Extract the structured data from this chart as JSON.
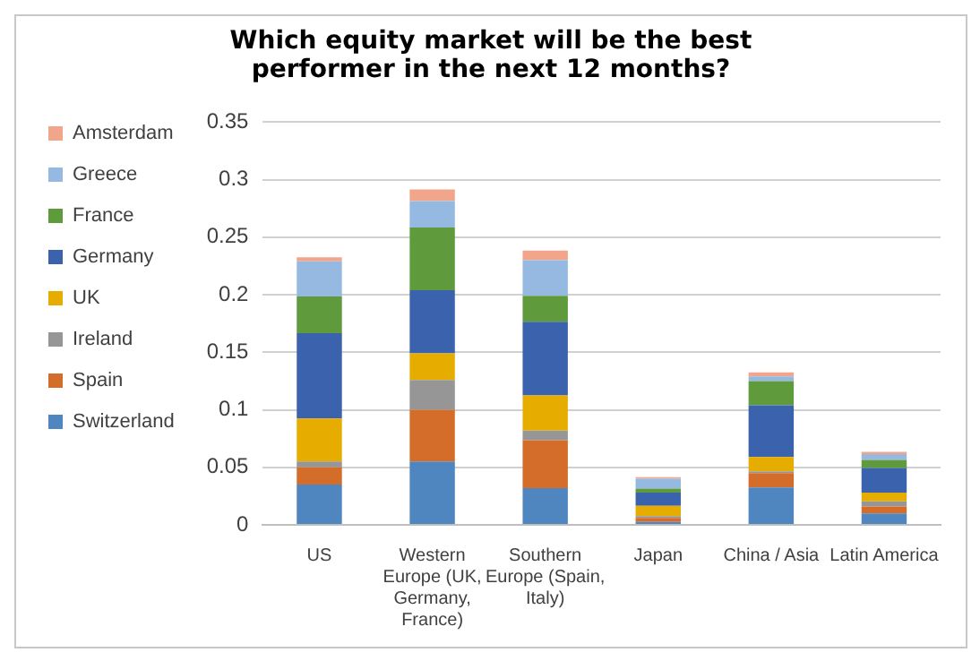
{
  "chart_data": {
    "type": "bar",
    "title": "Which equity market will be the best performer in the next 12 months?",
    "categories": [
      "US",
      "Western Europe (UK, Germany, France)",
      "Southern Europe (Spain, Italy)",
      "Japan",
      "China / Asia",
      "Latin America"
    ],
    "stacked": true,
    "ylim": [
      0,
      0.35
    ],
    "yticks": [
      0,
      0.05,
      0.1,
      0.15,
      0.2,
      0.25,
      0.3,
      0.35
    ],
    "grid": "y",
    "legend": "top left",
    "series": [
      {
        "name": "Switzerland",
        "color": "#4f86c0",
        "values": [
          0.035,
          0.055,
          0.032,
          0.0025,
          0.0325,
          0.01
        ]
      },
      {
        "name": "Spain",
        "color": "#d46c2a",
        "values": [
          0.015,
          0.045,
          0.0415,
          0.0035,
          0.0125,
          0.006
        ]
      },
      {
        "name": "Ireland",
        "color": "#969696",
        "values": [
          0.005,
          0.026,
          0.0085,
          0.0015,
          0.0015,
          0.0045
        ]
      },
      {
        "name": "UK",
        "color": "#e6ad00",
        "values": [
          0.0375,
          0.023,
          0.0305,
          0.009,
          0.0125,
          0.0075
        ]
      },
      {
        "name": "Germany",
        "color": "#3b63ad",
        "values": [
          0.074,
          0.055,
          0.064,
          0.0115,
          0.045,
          0.0215
        ]
      },
      {
        "name": "France",
        "color": "#5f9b3d",
        "values": [
          0.032,
          0.0545,
          0.0225,
          0.0035,
          0.021,
          0.007
        ]
      },
      {
        "name": "Greece",
        "color": "#96b9e1",
        "values": [
          0.0305,
          0.023,
          0.031,
          0.0085,
          0.004,
          0.005
        ]
      },
      {
        "name": "Amsterdam",
        "color": "#f1a68b",
        "values": [
          0.0035,
          0.01,
          0.0085,
          0.0015,
          0.0035,
          0.002
        ]
      }
    ]
  }
}
